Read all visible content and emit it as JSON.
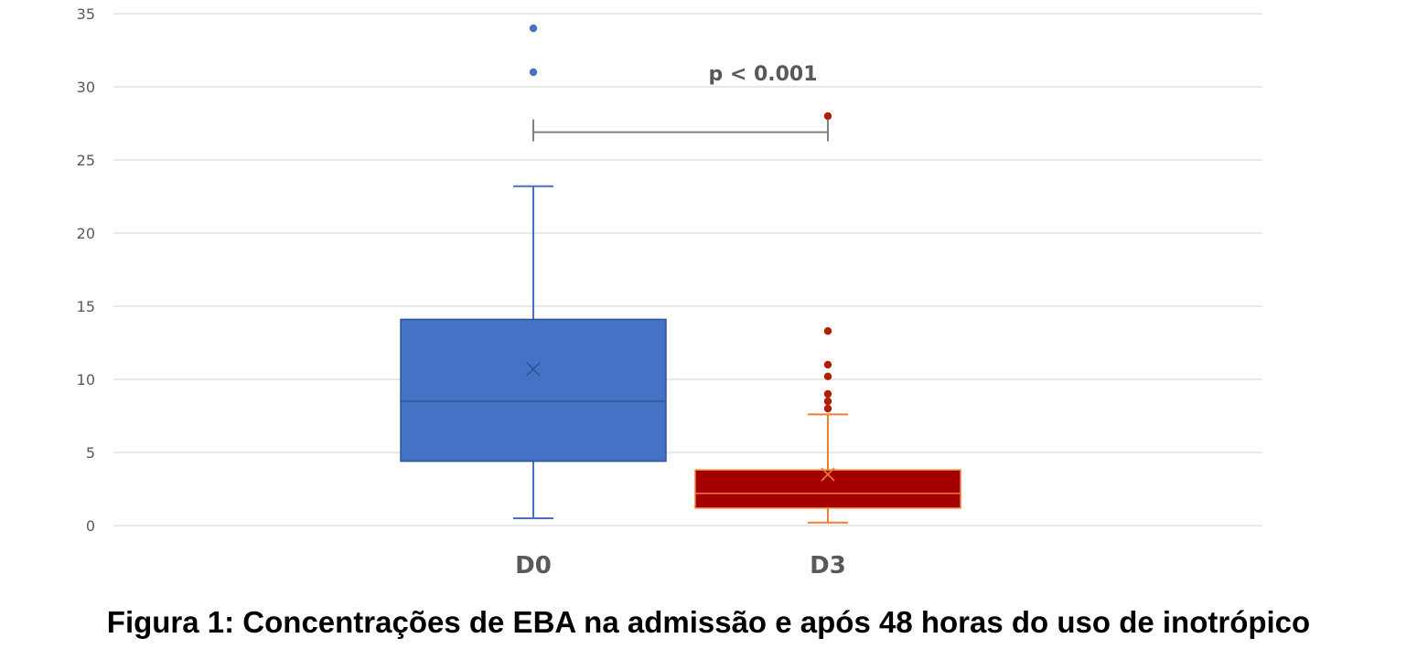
{
  "caption": "Figura 1: Concentrações de EBA na admissão e após 48 horas do uso de inotrópico",
  "chart_data": {
    "type": "box",
    "title": "",
    "xlabel": "",
    "ylabel": "",
    "ylim": [
      0,
      35
    ],
    "yticks": [
      0,
      5,
      10,
      15,
      20,
      25,
      30,
      35
    ],
    "grid": true,
    "categories": [
      "D0",
      "D3"
    ],
    "series": [
      {
        "category": "D0",
        "color": "#4472C4",
        "edge_color": "#2F5597",
        "whisker_color": "#4472C4",
        "min": 0.5,
        "q1": 4.4,
        "median": 8.5,
        "q3": 14.1,
        "max": 23.2,
        "mean": 10.7,
        "outliers": [
          31,
          34
        ]
      },
      {
        "category": "D3",
        "color": "#A50000",
        "edge_color": "#ED7D31",
        "whisker_color": "#ED7D31",
        "min": 0.2,
        "q1": 1.2,
        "median": 2.2,
        "q3": 3.8,
        "max": 7.6,
        "mean": 3.5,
        "outliers": [
          8.0,
          8.5,
          9.0,
          10.2,
          11.0,
          13.3,
          28
        ]
      }
    ],
    "annotation": {
      "text": "p < 0.001",
      "from": "D0",
      "to": "D3",
      "y": 26.9
    }
  }
}
